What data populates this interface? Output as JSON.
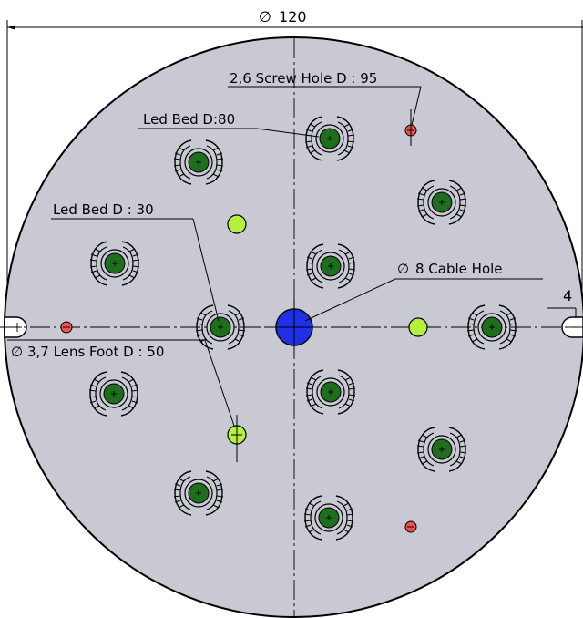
{
  "dimensions": {
    "overall_diameter": "120",
    "notch_width": "4"
  },
  "labels": {
    "screw_hole": "2,6 Screw Hole  D : 95",
    "led_bed_80": "Led Bed  D:80",
    "led_bed_30": "Led Bed  D : 30",
    "cable_hole": "8 Cable Hole",
    "lens_foot": "3,7 Lens Foot D : 50"
  },
  "symbols": {
    "diameter": "∅"
  },
  "colors": {
    "plate_fill": "#c8c9d3",
    "led_pad": "#1e6e1e",
    "cable_hole": "#2030e6",
    "lens_foot": "#b5f03a",
    "screw_hole": "#f05050"
  }
}
